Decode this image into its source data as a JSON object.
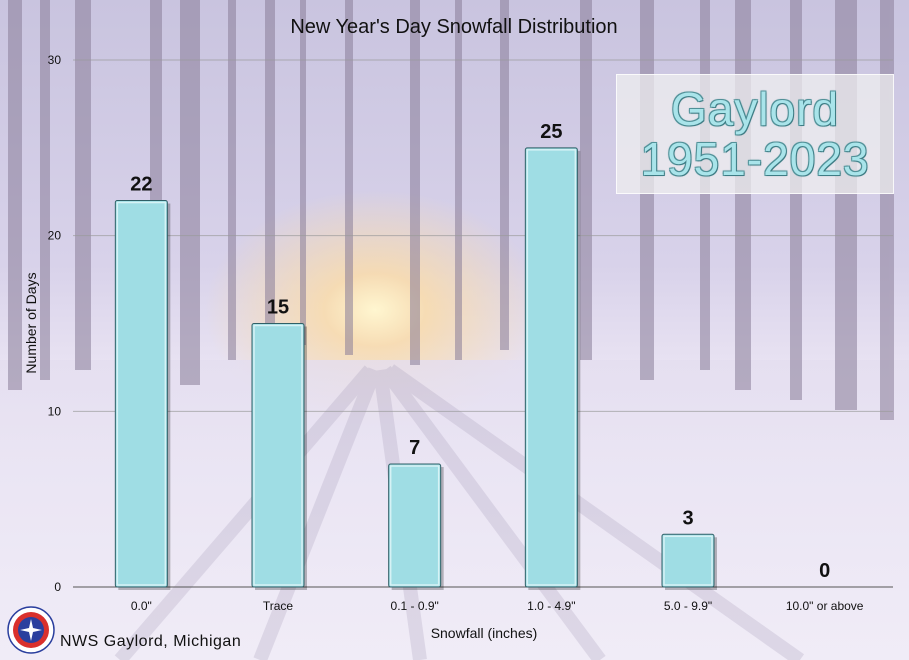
{
  "chart_data": {
    "type": "bar",
    "title": "New Year's Day Snowfall Distribution",
    "xlabel": "Snowfall (inches)",
    "ylabel": "Number of Days",
    "categories": [
      "0.0\"",
      "Trace",
      "0.1 - 0.9\"",
      "1.0 - 4.9\"",
      "5.0 - 9.9\"",
      "10.0\" or above"
    ],
    "values": [
      22,
      15,
      7,
      25,
      3,
      0
    ],
    "ylim": [
      0,
      30
    ],
    "yticks": [
      0,
      10,
      20,
      30
    ],
    "grid": true,
    "legend": "none",
    "colors": {
      "bar": "#9fdde4",
      "bar_edge": "#2f5f66"
    }
  },
  "station": {
    "name": "Gaylord",
    "period": "1951-2023"
  },
  "footer": {
    "office": "NWS Gaylord, Michigan"
  }
}
